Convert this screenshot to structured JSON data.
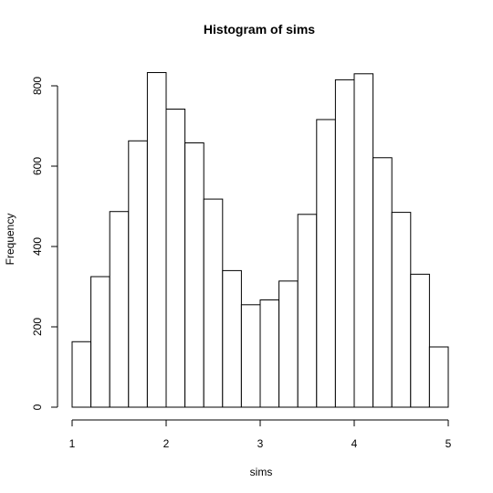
{
  "chart_data": {
    "type": "bar",
    "title": "Histogram of sims",
    "xlabel": "sims",
    "ylabel": "Frequency",
    "bin_edges": [
      1.0,
      1.2,
      1.4,
      1.6,
      1.8,
      2.0,
      2.2,
      2.4,
      2.6,
      2.8,
      3.0,
      3.2,
      3.4,
      3.6,
      3.8,
      4.0,
      4.2,
      4.4,
      4.6,
      4.8,
      5.0
    ],
    "values": [
      163,
      325,
      487,
      663,
      833,
      742,
      658,
      518,
      340,
      255,
      267,
      314,
      480,
      716,
      815,
      830,
      621,
      485,
      331,
      150
    ],
    "xlim": [
      1,
      5
    ],
    "ylim": [
      0,
      800
    ],
    "x_ticks": [
      1,
      2,
      3,
      4,
      5
    ],
    "y_ticks": [
      0,
      200,
      400,
      600,
      800
    ],
    "grid": false,
    "bar_fill": "#ffffff",
    "bar_stroke": "#000000"
  }
}
